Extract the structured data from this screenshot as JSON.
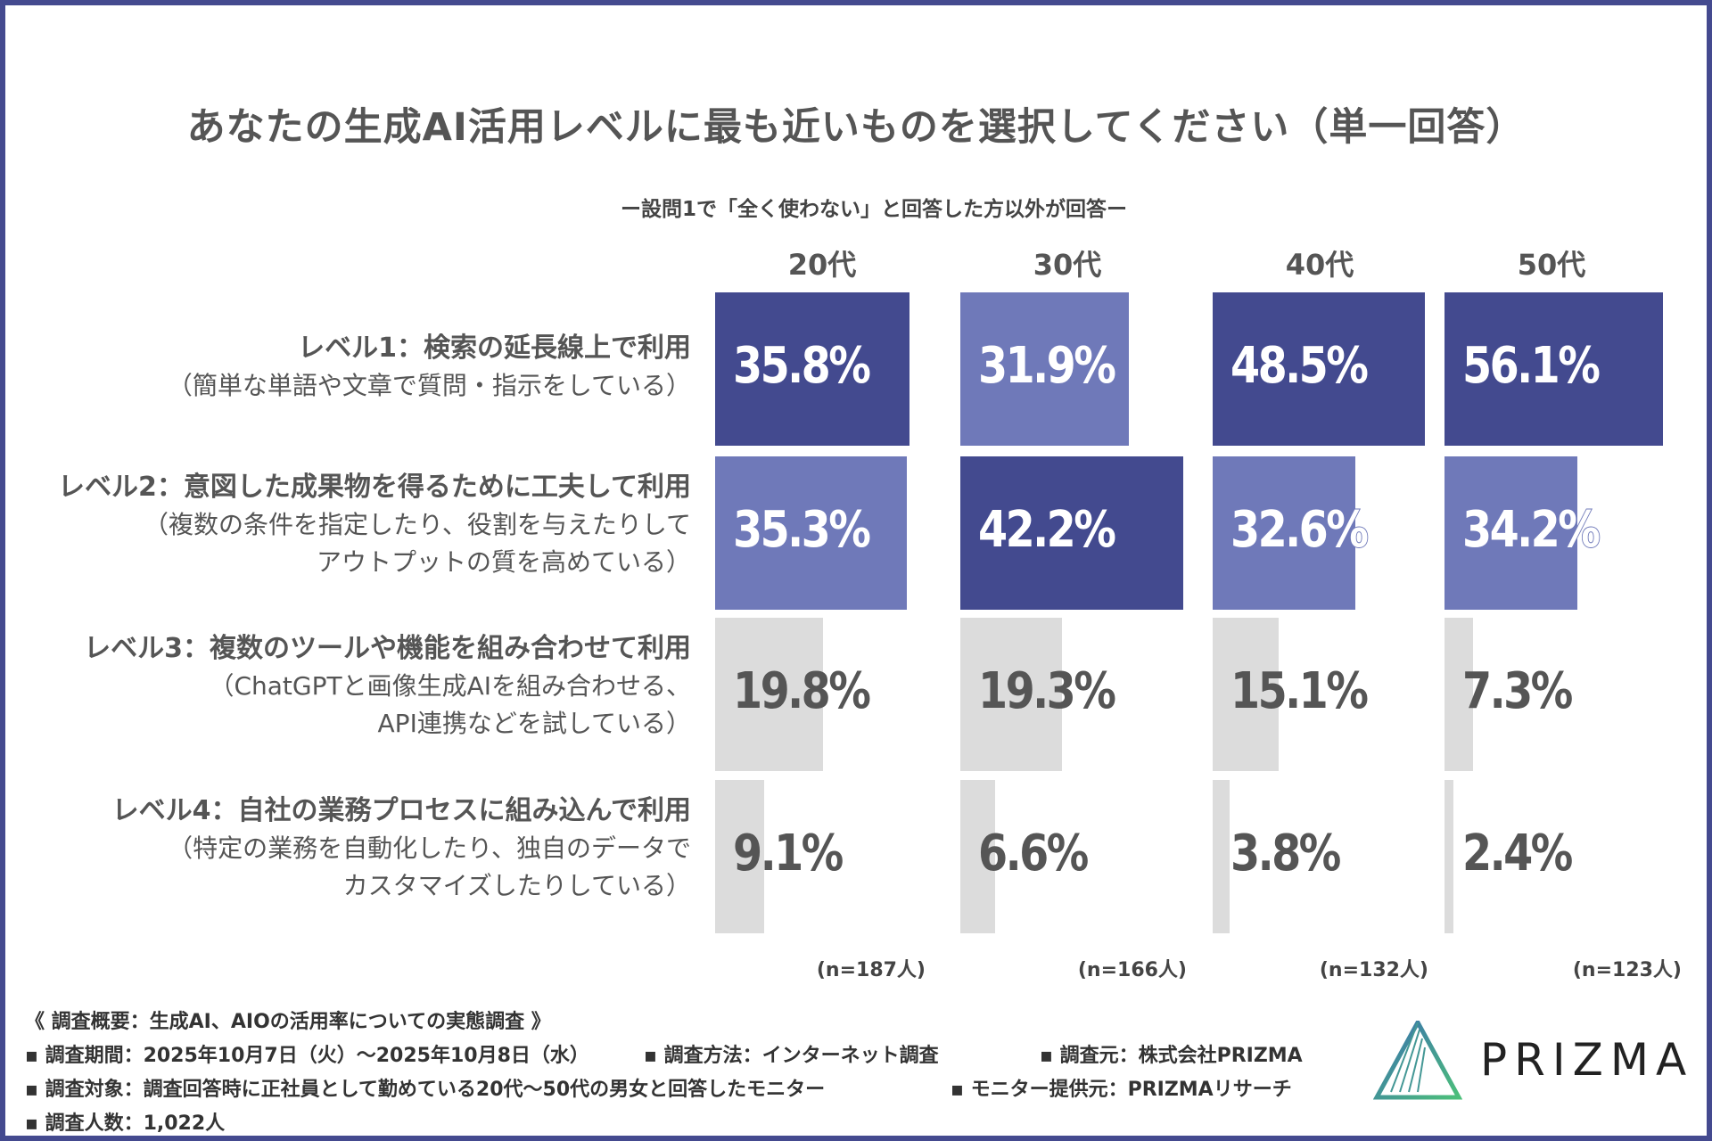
{
  "chart_data": {
    "type": "bar",
    "title": "あなたの生成AI活用レベルに最も近いものを選択してください（単一回答）",
    "subtitle": "ー設問1で「全く使わない」と回答した方以外が回答ー",
    "columns": [
      "20代",
      "30代",
      "40代",
      "50代"
    ],
    "sample_sizes": [
      "(n=187人)",
      "(n=166人)",
      "(n=132人)",
      "(n=123人)"
    ],
    "rows": [
      {
        "label": "レベル1：検索の延長線上で利用",
        "sub": "（簡単な単語や文章で質問・指示をしている）",
        "values": [
          35.8,
          31.9,
          48.5,
          56.1
        ],
        "labels": [
          "35.8%",
          "31.9%",
          "48.5%",
          "56.1%"
        ]
      },
      {
        "label": "レベル2：意図した成果物を得るために工夫して利用",
        "sub": "（複数の条件を指定したり、役割を与えたりして\nアウトプットの質を高めている）",
        "values": [
          35.3,
          42.2,
          32.6,
          34.2
        ],
        "labels": [
          "35.3%",
          "42.2%",
          "32.6%",
          "34.2%"
        ]
      },
      {
        "label": "レベル3：複数のツールや機能を組み合わせて利用",
        "sub": "（ChatGPTと画像生成AIを組み合わせる、\nAPI連携などを試している）",
        "values": [
          19.8,
          19.3,
          15.1,
          7.3
        ],
        "labels": [
          "19.8%",
          "19.3%",
          "15.1%",
          "7.3%"
        ]
      },
      {
        "label": "レベル4：自社の業務プロセスに組み込んで利用",
        "sub": "（特定の業務を自動化したり、独自のデータで\nカスタマイズしたりしている）",
        "values": [
          9.1,
          6.6,
          3.8,
          2.4
        ],
        "labels": [
          "9.1%",
          "6.6%",
          "3.8%",
          "2.4%"
        ]
      }
    ],
    "colors": {
      "highest": "#434a8f",
      "blue": "#6f79b9",
      "gray": "#dcdcdc",
      "frame": "#444a8f"
    }
  },
  "footer": {
    "heading": "《 調査概要：生成AI、AIOの活用率についての実態調査 》",
    "period": "▪ 調査期間：2025年10月7日（火）〜2025年10月8日（水）",
    "method": "▪ 調査方法：インターネット調査",
    "source": "▪ 調査元：株式会社PRIZMA",
    "target": "▪ 調査対象：調査回答時に正社員として勤めている20代〜50代の男女と回答したモニター",
    "provider": "▪ モニター提供元：PRIZMAリサーチ",
    "count": "▪ 調査人数：1,022人"
  },
  "logo": {
    "text": "PRIZMA"
  }
}
